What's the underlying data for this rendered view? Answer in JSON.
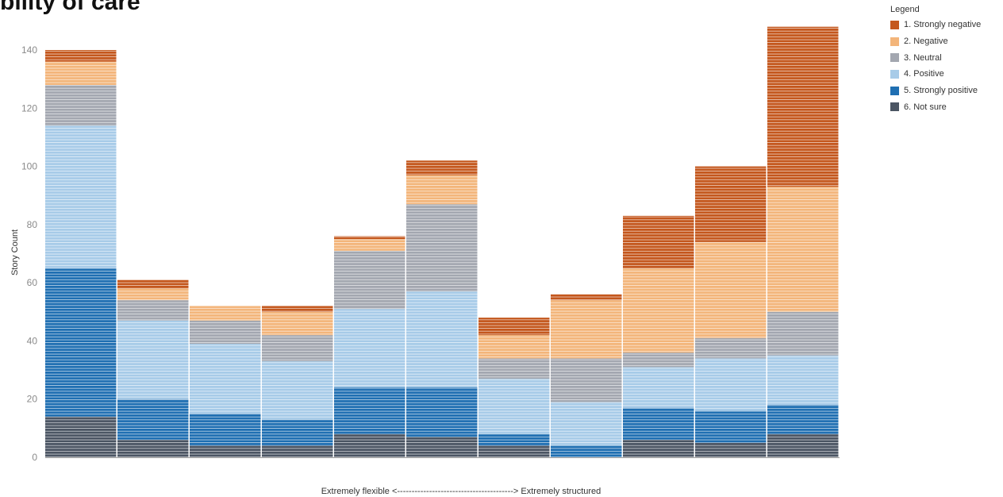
{
  "chart_data": {
    "type": "bar",
    "stacked": true,
    "title": "bility of care",
    "xlabel": "Extremely flexible <----------------------------------------> Extremely structured",
    "ylabel": "Story Count",
    "ylim": [
      0,
      150
    ],
    "yticks": [
      0,
      20,
      40,
      60,
      80,
      100,
      120,
      140
    ],
    "grid": false,
    "legend_title": "Legend",
    "legend_position": "top-right",
    "bins": 11,
    "series": [
      {
        "name": "6. Not sure",
        "color": "#4b5563",
        "values": [
          14,
          6,
          4,
          4,
          8,
          7,
          4,
          0,
          6,
          5,
          8
        ]
      },
      {
        "name": "5. Strongly positive",
        "color": "#1f6fb2",
        "values": [
          51,
          14,
          11,
          9,
          16,
          17,
          4,
          4,
          11,
          11,
          10
        ]
      },
      {
        "name": "4. Positive",
        "color": "#a7cbe8",
        "values": [
          49,
          27,
          24,
          20,
          27,
          33,
          19,
          15,
          14,
          18,
          17
        ]
      },
      {
        "name": "3. Neutral",
        "color": "#a3a7b0",
        "values": [
          14,
          7,
          8,
          9,
          20,
          30,
          7,
          15,
          5,
          7,
          15
        ]
      },
      {
        "name": "2. Negative",
        "color": "#f3b57a",
        "values": [
          8,
          4,
          5,
          8,
          4,
          10,
          8,
          20,
          29,
          33,
          43
        ]
      },
      {
        "name": "1. Strongly negative",
        "color": "#c4571d",
        "values": [
          4,
          3,
          0,
          2,
          1,
          5,
          6,
          2,
          18,
          26,
          55
        ]
      }
    ]
  }
}
